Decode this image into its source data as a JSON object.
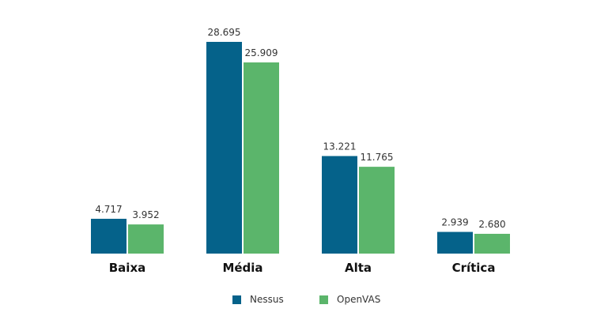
{
  "chart_data": {
    "type": "bar",
    "categories": [
      "Baixa",
      "Média",
      "Alta",
      "Crítica"
    ],
    "series": [
      {
        "name": "Nessus",
        "values": [
          4717,
          28695,
          13221,
          2939
        ],
        "labels": [
          "4.717",
          "28.695",
          "13.221",
          "2.939"
        ],
        "color": "#05628a"
      },
      {
        "name": "OpenVAS",
        "values": [
          3952,
          25909,
          11765,
          2680
        ],
        "labels": [
          "3.952",
          "25.909",
          "11.765",
          "2.680"
        ],
        "color": "#5bb56b"
      }
    ],
    "title": "",
    "xlabel": "",
    "ylabel": "",
    "ylim": [
      0,
      28695
    ],
    "grid": false,
    "legend_position": "bottom"
  }
}
